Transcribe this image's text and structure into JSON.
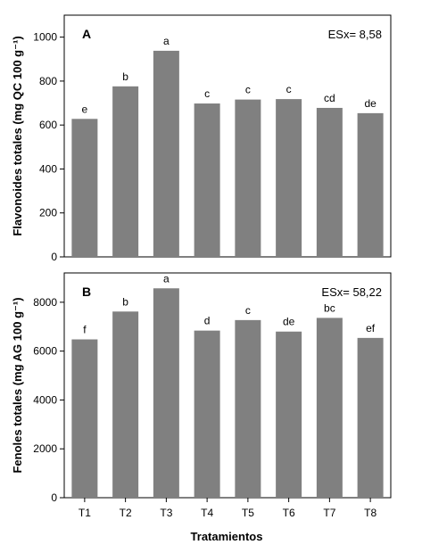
{
  "chart_data": [
    {
      "type": "bar",
      "panel_label": "A",
      "annotation": "ESx= 8,58",
      "ylabel": "Flavonoides totales (mg QC 100 g⁻¹)",
      "xlabel": "",
      "categories": [
        "T1",
        "T2",
        "T3",
        "T4",
        "T5",
        "T6",
        "T7",
        "T8"
      ],
      "values": [
        628,
        776,
        938,
        698,
        716,
        718,
        678,
        654
      ],
      "significance_letters": [
        "e",
        "b",
        "a",
        "c",
        "c",
        "c",
        "cd",
        "de"
      ],
      "ylim": [
        0,
        1100
      ],
      "yticks": [
        0,
        200,
        400,
        600,
        800,
        1000
      ],
      "show_x_tick_labels": false,
      "grid": false,
      "bar_color": "#808080"
    },
    {
      "type": "bar",
      "panel_label": "B",
      "annotation": "ESx= 58,22",
      "ylabel": "Fenoles totales (mg AG 100 g⁻¹)",
      "xlabel": "Tratamientos",
      "categories": [
        "T1",
        "T2",
        "T3",
        "T4",
        "T5",
        "T6",
        "T7",
        "T8"
      ],
      "values": [
        6480,
        7620,
        8570,
        6840,
        7270,
        6800,
        7360,
        6540
      ],
      "significance_letters": [
        "f",
        "b",
        "a",
        "d",
        "c",
        "de",
        "bc",
        "ef"
      ],
      "ylim": [
        0,
        9200
      ],
      "yticks": [
        0,
        2000,
        4000,
        6000,
        8000
      ],
      "show_x_tick_labels": true,
      "grid": false,
      "bar_color": "#808080"
    }
  ]
}
